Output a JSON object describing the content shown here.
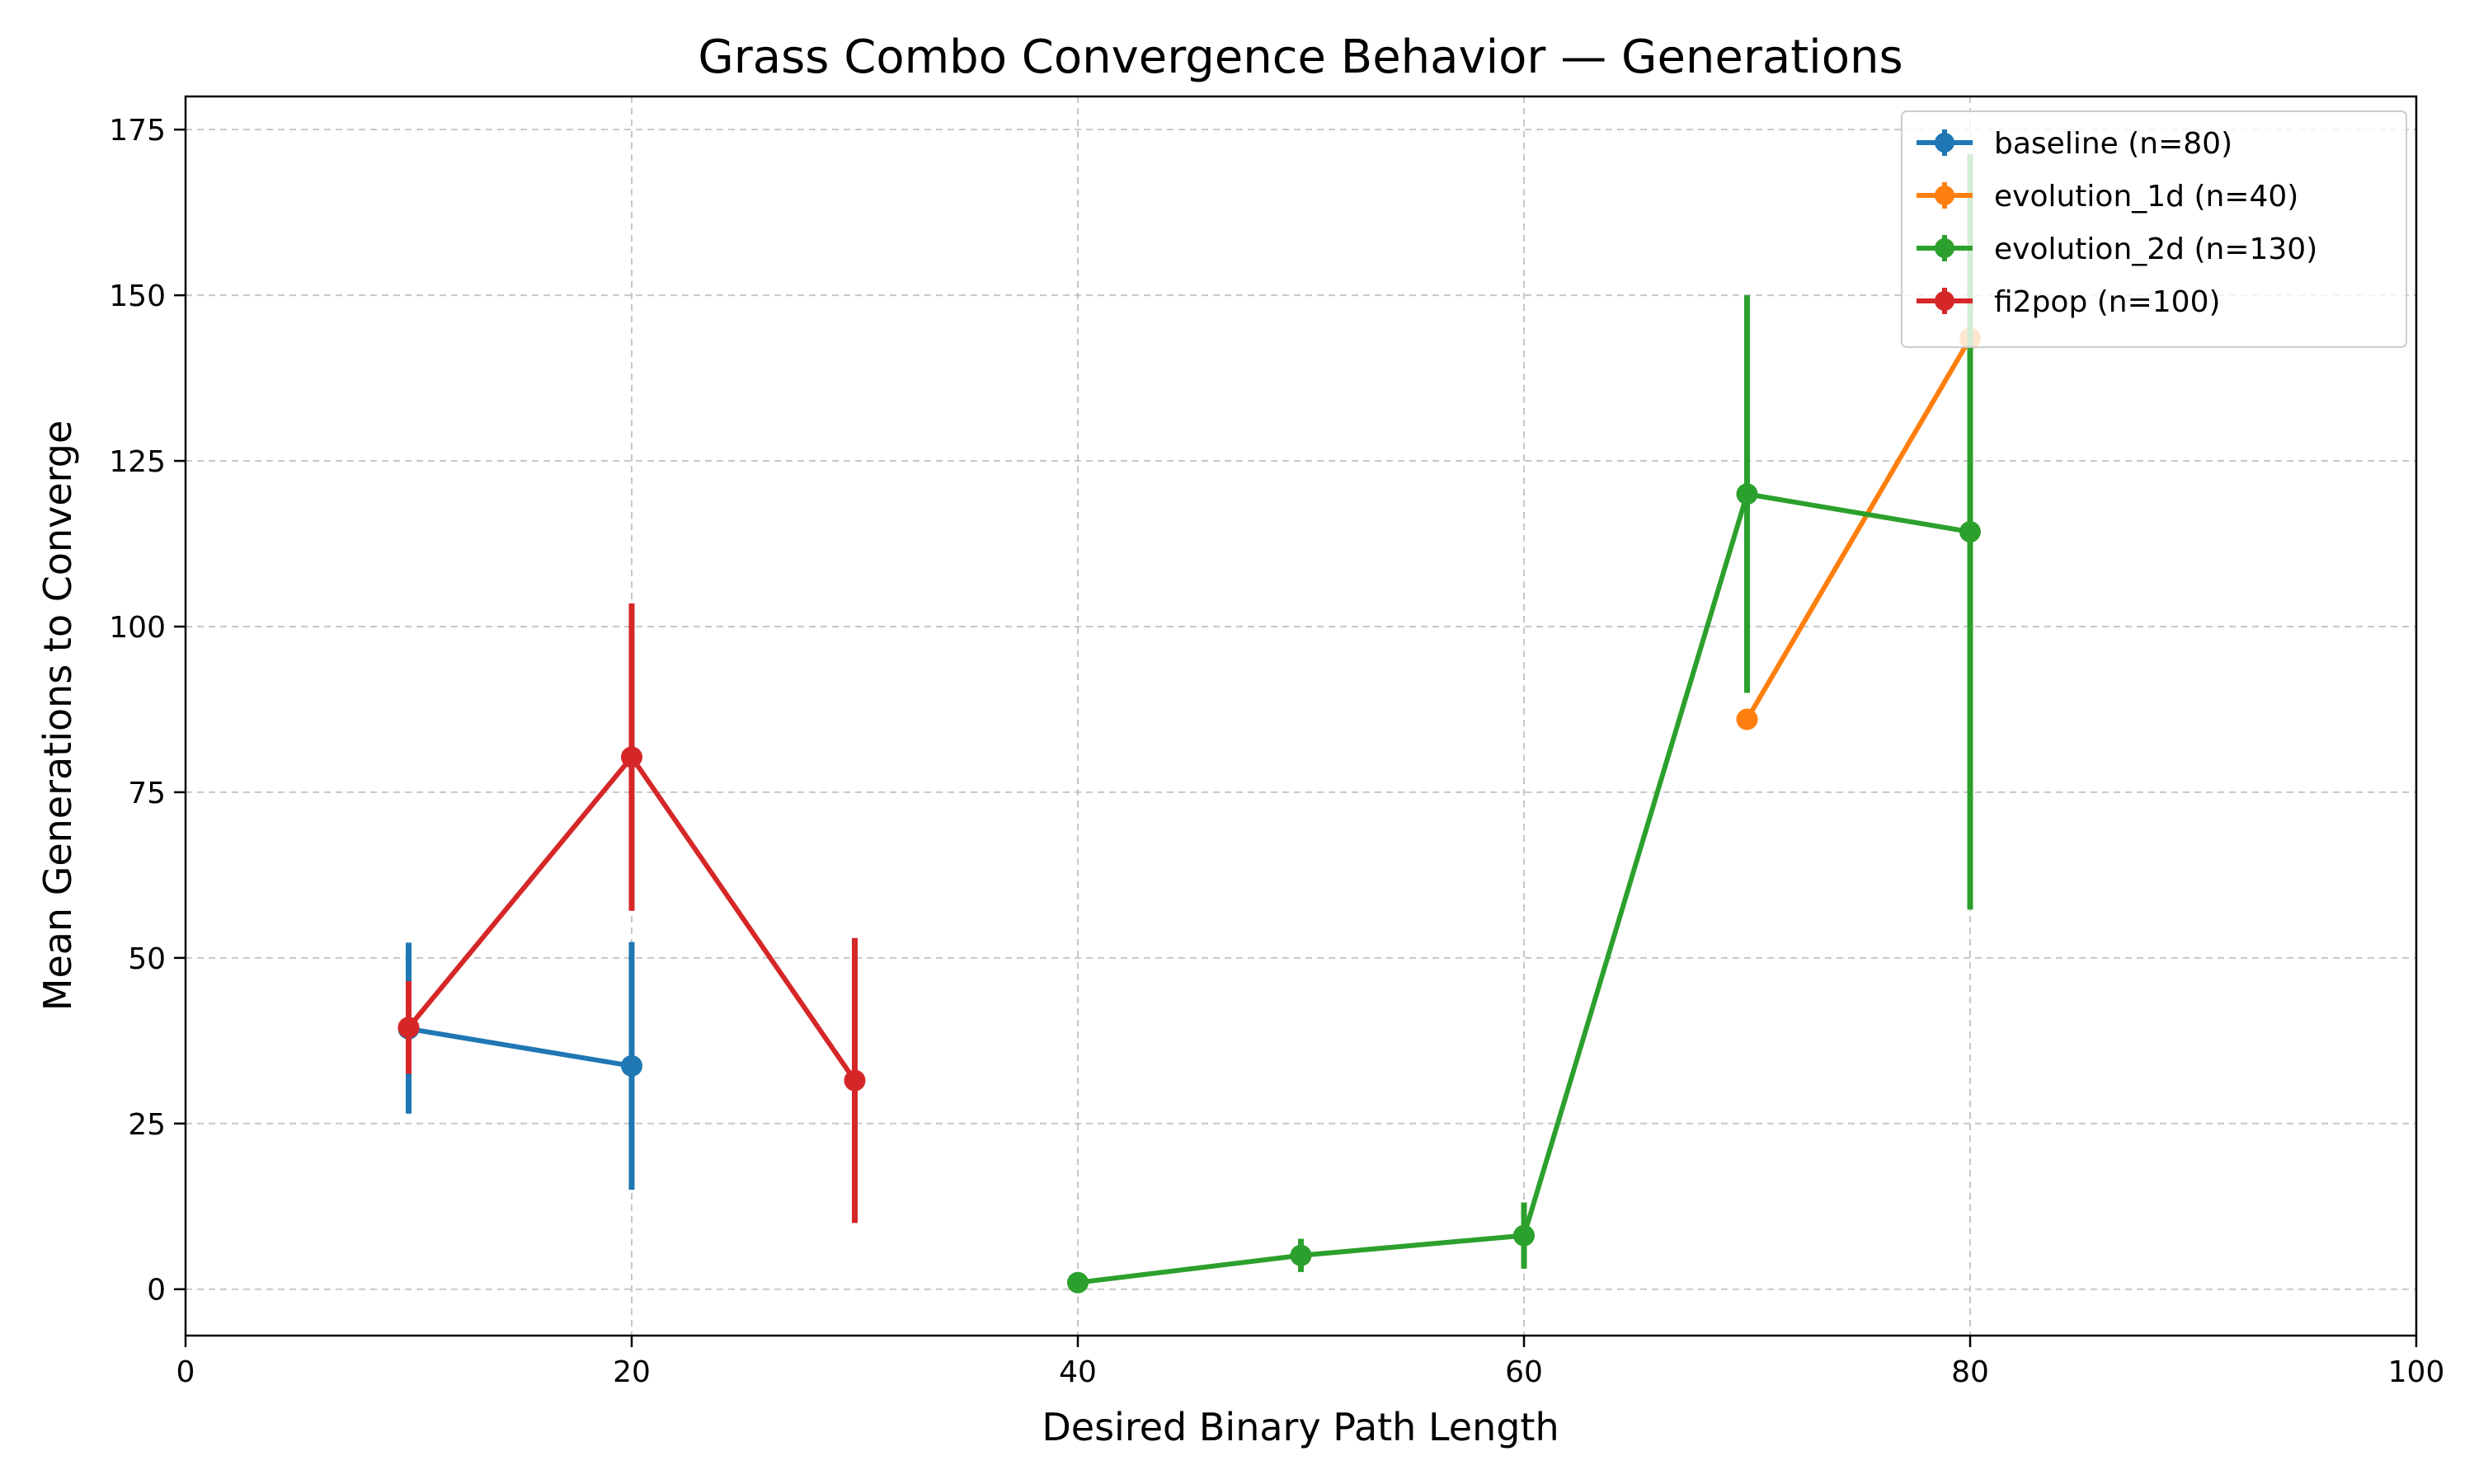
{
  "chart_data": {
    "type": "line",
    "title": "Grass Combo Convergence Behavior — Generations",
    "xlabel": "Desired Binary Path Length",
    "ylabel": "Mean Generations to Converge",
    "xlim": [
      0,
      100
    ],
    "ylim": [
      -7,
      180
    ],
    "x_ticks": [
      0,
      20,
      40,
      60,
      80,
      100
    ],
    "y_ticks": [
      0,
      25,
      50,
      75,
      100,
      125,
      150,
      175
    ],
    "grid": true,
    "legend_position": "top-right",
    "series": [
      {
        "name": "baseline (n=80)",
        "color": "#1f77b4",
        "points": [
          {
            "x": 10,
            "y": 39.3,
            "err_low": 26.5,
            "err_high": 52.3
          },
          {
            "x": 20,
            "y": 33.7,
            "err_low": 15.0,
            "err_high": 52.4
          }
        ]
      },
      {
        "name": "evolution_1d (n=40)",
        "color": "#ff7f0e",
        "points": [
          {
            "x": 70,
            "y": 86.0,
            "err_low": 86.0,
            "err_high": 86.0
          },
          {
            "x": 80,
            "y": 143.5,
            "err_low": 143.5,
            "err_high": 143.5
          }
        ]
      },
      {
        "name": "evolution_2d (n=130)",
        "color": "#2ca02c",
        "points": [
          {
            "x": 40,
            "y": 1.0,
            "err_low": 0.5,
            "err_high": 1.5
          },
          {
            "x": 50,
            "y": 5.1,
            "err_low": 2.6,
            "err_high": 7.6
          },
          {
            "x": 60,
            "y": 8.1,
            "err_low": 3.1,
            "err_high": 13.1
          },
          {
            "x": 70,
            "y": 120.0,
            "err_low": 90.0,
            "err_high": 150.0
          },
          {
            "x": 80,
            "y": 114.3,
            "err_low": 57.3,
            "err_high": 171.3
          }
        ]
      },
      {
        "name": "fi2pop (n=100)",
        "color": "#d62728",
        "points": [
          {
            "x": 10,
            "y": 39.5,
            "err_low": 32.5,
            "err_high": 46.5
          },
          {
            "x": 20,
            "y": 80.3,
            "err_low": 57.1,
            "err_high": 103.5
          },
          {
            "x": 30,
            "y": 31.5,
            "err_low": 10.0,
            "err_high": 53.0
          }
        ]
      }
    ]
  }
}
